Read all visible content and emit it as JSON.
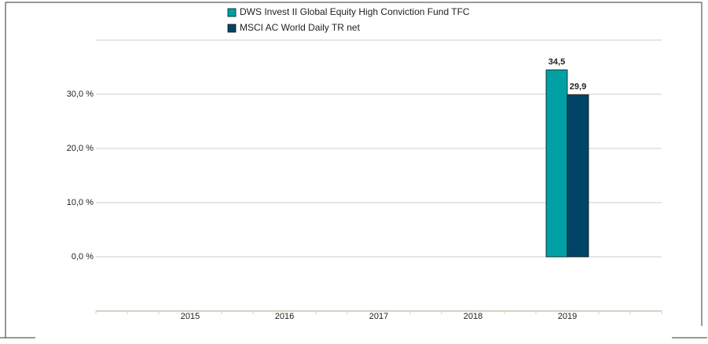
{
  "chart_data": {
    "type": "bar",
    "categories": [
      "2015",
      "2016",
      "2017",
      "2018",
      "2019"
    ],
    "series": [
      {
        "name": "DWS Invest II Global Equity High Conviction Fund  TFC",
        "color": "#00a0a4",
        "values": [
          null,
          null,
          null,
          null,
          34.5
        ],
        "value_labels": [
          null,
          null,
          null,
          null,
          "34,5"
        ]
      },
      {
        "name": "MSCI AC World Daily TR net",
        "color": "#004567",
        "values": [
          null,
          null,
          null,
          null,
          29.9
        ],
        "value_labels": [
          null,
          null,
          null,
          null,
          "29,9"
        ]
      }
    ],
    "ylim": [
      -10,
      40
    ],
    "yticks": [
      {
        "value": 0,
        "label": "0,0 %"
      },
      {
        "value": 10,
        "label": "10,0 %"
      },
      {
        "value": 20,
        "label": "20,0 %"
      },
      {
        "value": 30,
        "label": "30,0 %"
      }
    ],
    "grid": true
  }
}
